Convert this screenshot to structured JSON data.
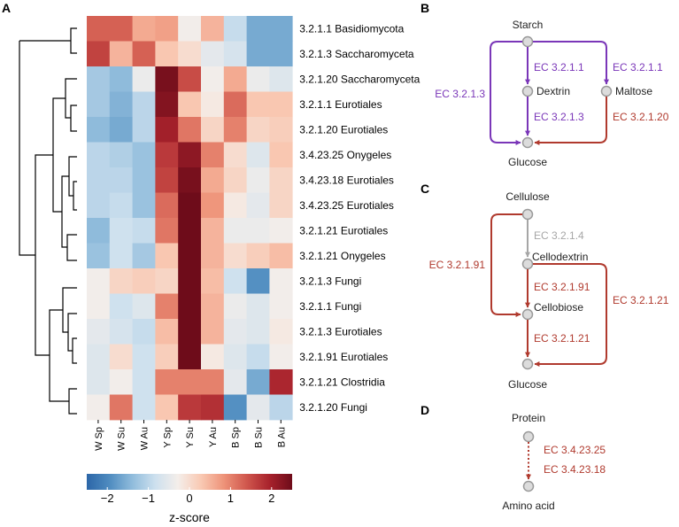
{
  "colors": {
    "purple": "#7a36b8",
    "red": "#b03a2e",
    "gray": "#a6a6a6",
    "node_fill": "#dcdcdc",
    "node_stroke": "#9a9a9a",
    "scale": [
      "#2c66a8",
      "#4f8cc0",
      "#90bcdc",
      "#cde0ee",
      "#f4eeea",
      "#f9c9b3",
      "#ee9379",
      "#d0574d",
      "#a8222c",
      "#6e0c1a"
    ]
  },
  "panel_a": {
    "label": "A",
    "colorbar_title": "z-score",
    "colorbar_ticks": [
      "−2",
      "−1",
      "0",
      "1",
      "2"
    ]
  },
  "panel_b": {
    "label": "B",
    "nodes": {
      "starch": "Starch",
      "dextrin": "Dextrin",
      "maltose": "Maltose",
      "glucose": "Glucose"
    },
    "ec": {
      "starch_dextrin": "EC 3.2.1.1",
      "starch_maltose": "EC 3.2.1.1",
      "starch_glucose": "EC 3.2.1.3",
      "dextrin_glucose": "EC 3.2.1.3",
      "maltose_glucose": "EC 3.2.1.20"
    }
  },
  "panel_c": {
    "label": "C",
    "nodes": {
      "cellulose": "Cellulose",
      "cellodextrin": "Cellodextrin",
      "cellobiose": "Cellobiose",
      "glucose": "Glucose"
    },
    "ec": {
      "cellulose_cellodextrin": "EC 3.2.1.4",
      "cellulose_cellobiose": "EC 3.2.1.91",
      "cellodextrin_cellobiose": "EC 3.2.1.91",
      "cellodextrin_glucose": "EC 3.2.1.21",
      "cellobiose_glucose": "EC 3.2.1.21"
    }
  },
  "panel_d": {
    "label": "D",
    "nodes": {
      "protein": "Protein",
      "amino_acid": "Amino acid"
    },
    "ec": {
      "first": "EC 3.4.23.25",
      "second": "EC 3.4.23.18"
    }
  },
  "chart_data": {
    "type": "heatmap",
    "title": "",
    "colorbar_label": "z-score",
    "value_range": [
      -2.5,
      2.5
    ],
    "columns": [
      "W Sp",
      "W Su",
      "W Au",
      "Y Sp",
      "Y Su",
      "Y Au",
      "B Sp",
      "B Su",
      "B Au"
    ],
    "rows": [
      "3.2.1.1 Basidiomycota",
      "3.2.1.3 Saccharomyceta",
      "3.2.1.20 Saccharomyceta",
      "3.2.1.1 Eurotiales",
      "3.2.1.20 Eurotiales",
      "3.4.23.25 Onygeles",
      "3.4.23.18 Eurotiales",
      "3.4.23.25 Eurotiales",
      "3.2.1.21 Eurotiales",
      "3.2.1.21 Onygeles",
      "3.2.1.3 Fungi",
      "3.2.1.1 Fungi",
      "3.2.1.3 Eurotiales",
      "3.2.1.91 Eurotiales",
      "3.2.1.21 Clostridia",
      "3.2.1.20 Fungi"
    ],
    "values": [
      [
        1.3,
        1.3,
        0.6,
        0.7,
        -0.3,
        0.5,
        -0.9,
        -1.6,
        -1.6
      ],
      [
        1.6,
        0.5,
        1.3,
        0.3,
        0.0,
        -0.5,
        -0.7,
        -1.6,
        -1.6
      ],
      [
        -1.2,
        -1.4,
        -0.4,
        2.4,
        1.5,
        -0.3,
        0.6,
        -0.4,
        -0.6
      ],
      [
        -1.2,
        -1.5,
        -1.0,
        2.3,
        0.3,
        -0.2,
        1.2,
        0.3,
        0.3
      ],
      [
        -1.4,
        -1.6,
        -1.0,
        2.0,
        1.1,
        0.1,
        1.0,
        0.1,
        0.2
      ],
      [
        -1.0,
        -1.1,
        -1.3,
        1.7,
        2.2,
        1.0,
        0.0,
        -0.6,
        0.3
      ],
      [
        -1.0,
        -1.0,
        -1.3,
        1.6,
        2.4,
        0.6,
        0.1,
        -0.4,
        0.1
      ],
      [
        -1.0,
        -0.9,
        -1.3,
        1.2,
        2.5,
        0.8,
        -0.2,
        -0.5,
        0.1
      ],
      [
        -1.4,
        -0.8,
        -0.9,
        1.1,
        2.5,
        0.5,
        -0.4,
        -0.4,
        -0.3
      ],
      [
        -1.3,
        -0.8,
        -1.2,
        0.3,
        2.5,
        0.5,
        0.0,
        0.2,
        0.4
      ],
      [
        -0.3,
        0.1,
        0.2,
        0.1,
        2.6,
        0.4,
        -0.8,
        -1.9,
        -0.3
      ],
      [
        -0.3,
        -0.8,
        -0.6,
        1.0,
        2.7,
        0.5,
        -0.4,
        -0.6,
        -0.3
      ],
      [
        -0.5,
        -0.7,
        -0.9,
        0.4,
        2.8,
        0.5,
        -0.5,
        -0.6,
        -0.2
      ],
      [
        -0.6,
        0.0,
        -0.8,
        0.2,
        3.0,
        -0.2,
        -0.6,
        -0.9,
        -0.3
      ],
      [
        -0.6,
        -0.3,
        -0.8,
        1.0,
        1.0,
        1.0,
        -0.5,
        -1.6,
        1.9
      ],
      [
        -0.3,
        1.1,
        -0.8,
        0.3,
        1.7,
        1.8,
        -1.9,
        -0.5,
        -1.0
      ]
    ]
  }
}
